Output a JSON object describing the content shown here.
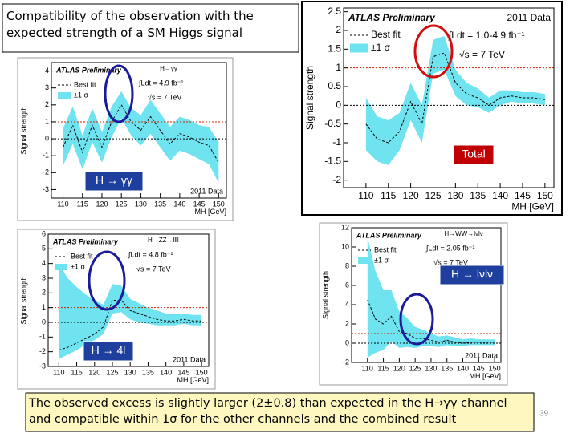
{
  "slide": {
    "title": "Compatibility of the observation with the expected strength of a SM Higgs signal",
    "caption": "The observed excess is slightly larger (2±0.8) than expected in the H→γγ channel and compatible within 1σ for the other channels and the combined result",
    "page_number": "39",
    "labels": [
      "Total",
      "H → γγ",
      "H → 4l",
      "H → lνlν"
    ]
  },
  "chart_data": [
    {
      "type": "line",
      "y_label": "Signal strength",
      "x_label": "MH [GeV]",
      "annotations": {
        "experiment": "ATLAS Preliminary",
        "dataset": "2011 Data",
        "luminosity": "∫Ldt = 1.0-4.9 fb⁻¹",
        "energy": "√s = 7 TeV"
      },
      "x": [
        110,
        112.5,
        115,
        117.5,
        120,
        122.5,
        125,
        127.5,
        130,
        132.5,
        135,
        137.5,
        140,
        142.5,
        145,
        147.5,
        150
      ],
      "series": [
        {
          "name": "Best fit",
          "color": "#000000",
          "values": [
            -0.5,
            -0.9,
            -1.0,
            -0.7,
            0.1,
            -0.5,
            1.3,
            1.4,
            0.6,
            0.3,
            0.2,
            0.0,
            0.2,
            0.25,
            0.2,
            0.2,
            0.15
          ]
        },
        {
          "name": "±1 σ",
          "color": "#6fe3f0",
          "lower": [
            -1.2,
            -1.5,
            -1.6,
            -1.2,
            -0.4,
            -1.0,
            0.85,
            0.95,
            0.25,
            0.0,
            -0.05,
            -0.2,
            0.0,
            0.1,
            0.05,
            0.05,
            0.0
          ],
          "upper": [
            0.2,
            -0.3,
            -0.4,
            -0.2,
            0.6,
            0.0,
            1.75,
            1.85,
            0.95,
            0.6,
            0.45,
            0.2,
            0.4,
            0.4,
            0.35,
            0.35,
            0.3
          ]
        }
      ],
      "reference_lines": [
        {
          "value": 1,
          "color": "#cc2200"
        },
        {
          "value": 0,
          "color": "#000000"
        }
      ],
      "xlim": [
        105,
        152
      ],
      "xticks": [
        110,
        115,
        120,
        125,
        130,
        135,
        140,
        145,
        150
      ],
      "ylim": [
        -2.2,
        2.6
      ],
      "yticks": [
        -2,
        -1.5,
        -1,
        -0.5,
        0,
        0.5,
        1,
        1.5,
        2,
        2.5
      ]
    },
    {
      "type": "line",
      "y_label": "Signal strength",
      "x_label": "MH [GeV]",
      "annotations": {
        "experiment": "ATLAS Preliminary",
        "channel": "H→γγ",
        "dataset": "2011 Data",
        "luminosity": "∫Ldt = 4.9 fb⁻¹",
        "energy": "√s = 7 TeV"
      },
      "x": [
        110,
        112.5,
        115,
        117.5,
        120,
        122.5,
        125,
        127.5,
        130,
        132.5,
        135,
        137.5,
        140,
        142.5,
        145,
        147.5,
        150
      ],
      "series": [
        {
          "name": "Best fit",
          "color": "#000000",
          "values": [
            -0.5,
            0.8,
            -0.8,
            0.8,
            -0.5,
            1.0,
            2.0,
            1.0,
            0.5,
            1.3,
            0.5,
            -0.3,
            0.3,
            0.1,
            -0.2,
            -0.4,
            -1.4
          ]
        },
        {
          "name": "±1 σ",
          "color": "#6fe3f0",
          "lower": [
            -1.6,
            -0.3,
            -1.8,
            -0.2,
            -1.4,
            0.1,
            1.2,
            0.2,
            -0.4,
            0.3,
            -0.5,
            -1.3,
            -0.7,
            -0.9,
            -1.2,
            -1.5,
            -2.6
          ],
          "upper": [
            0.6,
            1.9,
            0.2,
            1.8,
            0.4,
            1.9,
            2.8,
            1.8,
            1.4,
            2.3,
            1.5,
            0.7,
            1.3,
            1.1,
            0.8,
            0.7,
            -0.2
          ]
        }
      ],
      "reference_lines": [
        {
          "value": 1,
          "color": "#cc2200"
        },
        {
          "value": 0,
          "color": "#000000"
        }
      ],
      "xlim": [
        107,
        152
      ],
      "xticks": [
        110,
        115,
        120,
        125,
        130,
        135,
        140,
        145,
        150
      ],
      "ylim": [
        -3.5,
        4.5
      ],
      "yticks": [
        -3,
        -2,
        -1,
        0,
        1,
        2,
        3,
        4
      ]
    },
    {
      "type": "line",
      "y_label": "Signal strength",
      "x_label": "MH [GeV]",
      "annotations": {
        "experiment": "ATLAS Preliminary",
        "channel": "H→ZZ→llll",
        "dataset": "2011 Data",
        "luminosity": "∫Ldt = 4.8 fb⁻¹",
        "energy": "√s = 7 TeV"
      },
      "x": [
        110,
        112.5,
        115,
        117.5,
        120,
        122.5,
        125,
        127.5,
        130,
        132.5,
        135,
        137.5,
        140,
        142.5,
        145,
        147.5,
        150
      ],
      "series": [
        {
          "name": "Best fit",
          "color": "#000000",
          "values": [
            -1.9,
            -1.7,
            -1.4,
            -1.1,
            -0.8,
            -0.3,
            1.5,
            1.5,
            0.8,
            0.6,
            0.4,
            0.2,
            0.1,
            0.1,
            0.2,
            0.1,
            0.1
          ]
        },
        {
          "name": "±1 σ",
          "color": "#6fe3f0",
          "lower": [
            -2.5,
            -2.2,
            -1.9,
            -1.5,
            -1.2,
            -0.8,
            0.6,
            0.7,
            0.2,
            0.0,
            -0.1,
            -0.2,
            -0.2,
            -0.2,
            -0.1,
            -0.2,
            -0.2
          ],
          "upper": [
            4.0,
            3.0,
            2.4,
            1.9,
            1.5,
            1.2,
            2.6,
            2.5,
            1.6,
            1.3,
            1.0,
            0.8,
            0.6,
            0.6,
            0.6,
            0.5,
            0.5
          ]
        }
      ],
      "reference_lines": [
        {
          "value": 1,
          "color": "#cc2200"
        },
        {
          "value": 0,
          "color": "#000000"
        }
      ],
      "xlim": [
        107,
        152
      ],
      "xticks": [
        110,
        115,
        120,
        125,
        130,
        135,
        140,
        145,
        150
      ],
      "ylim": [
        -3,
        6
      ],
      "yticks": [
        -3,
        -2,
        -1,
        0,
        1,
        2,
        3,
        4,
        5,
        6
      ]
    },
    {
      "type": "line",
      "y_label": "Signal strength",
      "x_label": "MH [GeV]",
      "annotations": {
        "experiment": "ATLAS Preliminary",
        "channel": "H→WW→lνlν",
        "dataset": "2011 Data",
        "luminosity": "∫Ldt = 2.05 fb⁻¹",
        "energy": "√s = 7 TeV"
      },
      "x": [
        110,
        112.5,
        115,
        117.5,
        120,
        122.5,
        125,
        127.5,
        130,
        132.5,
        135,
        137.5,
        140,
        142.5,
        145,
        147.5,
        150
      ],
      "series": [
        {
          "name": "Best fit",
          "color": "#000000",
          "values": [
            4.5,
            2.5,
            2.0,
            2.8,
            1.2,
            1.0,
            0.5,
            0.5,
            0.3,
            0.1,
            0.3,
            0.1,
            0.0,
            0.1,
            0.1,
            0.1,
            0.1
          ]
        },
        {
          "name": "±1 σ",
          "color": "#6fe3f0",
          "lower": [
            -1.5,
            -1.0,
            -0.7,
            0.2,
            -0.5,
            -0.4,
            -0.5,
            -0.3,
            -0.3,
            -0.4,
            -0.2,
            -0.3,
            -0.3,
            -0.2,
            -0.2,
            -0.2,
            -0.2
          ],
          "upper": [
            11,
            7.5,
            5.5,
            5.5,
            3.3,
            2.6,
            1.7,
            1.4,
            1.0,
            0.7,
            0.8,
            0.6,
            0.4,
            0.5,
            0.4,
            0.4,
            0.4
          ]
        }
      ],
      "reference_lines": [
        {
          "value": 1,
          "color": "#cc2200"
        },
        {
          "value": 0,
          "color": "#000000"
        }
      ],
      "xlim": [
        105,
        152
      ],
      "xticks": [
        110,
        115,
        120,
        125,
        130,
        135,
        140,
        145,
        150
      ],
      "ylim": [
        -2,
        12
      ],
      "yticks": [
        -2,
        0,
        2,
        4,
        6,
        8,
        10,
        12
      ]
    }
  ]
}
